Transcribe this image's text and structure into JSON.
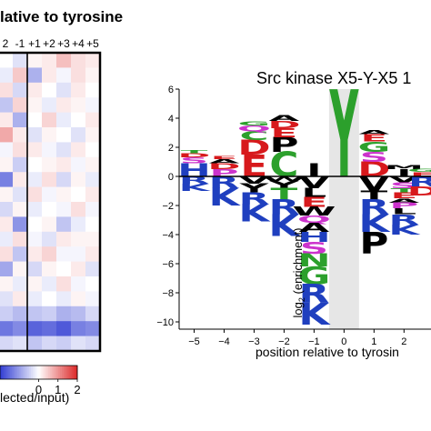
{
  "chart_data": [
    {
      "type": "heatmap",
      "title_fragment": "lative to tyrosine",
      "column_labels": [
        "2",
        "-1",
        "+1",
        "+2",
        "+3",
        "+4",
        "+5"
      ],
      "colorbar_ticks": [
        "0",
        "1",
        "2"
      ],
      "colorbar_label_fragment": "lected/input)",
      "colorbar_range": [
        -2,
        2
      ],
      "values": [
        [
          0.0,
          -0.3,
          0.1,
          0.2,
          0.6,
          0.3,
          0.2
        ],
        [
          -0.2,
          0.5,
          -0.8,
          0.2,
          -0.1,
          0.3,
          0.1
        ],
        [
          0.3,
          -0.4,
          0.2,
          0.0,
          -0.3,
          0.2,
          0.0
        ],
        [
          -0.6,
          0.4,
          0.1,
          -0.2,
          0.2,
          0.1,
          -0.1
        ],
        [
          0.2,
          -0.8,
          0.0,
          0.4,
          -0.2,
          0.0,
          0.2
        ],
        [
          0.8,
          0.2,
          -0.3,
          0.1,
          0.0,
          -0.3,
          0.1
        ],
        [
          -0.1,
          0.3,
          0.2,
          -0.1,
          -0.3,
          0.2,
          0.0
        ],
        [
          0.1,
          -0.5,
          0.0,
          0.1,
          0.2,
          -0.1,
          0.1
        ],
        [
          -1.3,
          0.2,
          -0.2,
          0.3,
          -0.4,
          0.1,
          -0.2
        ],
        [
          0.1,
          -0.3,
          0.3,
          -0.1,
          0.1,
          0.0,
          0.2
        ],
        [
          -0.4,
          0.1,
          -0.2,
          0.0,
          -0.1,
          0.3,
          -0.1
        ],
        [
          0.2,
          -1.1,
          0.0,
          0.1,
          -0.6,
          -0.2,
          0.0
        ],
        [
          -0.2,
          0.3,
          -0.1,
          -0.3,
          0.2,
          0.1,
          0.1
        ],
        [
          0.3,
          -0.6,
          0.2,
          0.4,
          -0.1,
          -0.1,
          0.2
        ],
        [
          -0.9,
          0.1,
          -0.4,
          0.1,
          0.0,
          0.2,
          -0.3
        ],
        [
          0.1,
          -0.2,
          0.1,
          -0.2,
          0.3,
          -0.1,
          0.0
        ],
        [
          -0.3,
          0.2,
          -0.2,
          0.0,
          -0.2,
          0.1,
          -0.1
        ],
        [
          -0.5,
          -0.7,
          -0.6,
          -0.5,
          -0.8,
          -0.7,
          -0.4
        ],
        [
          -1.4,
          -1.2,
          -1.6,
          -1.5,
          -1.7,
          -1.3,
          -1.2
        ],
        [
          -0.4,
          -0.3,
          -0.6,
          -0.4,
          -0.5,
          -0.3,
          -0.4
        ]
      ]
    },
    {
      "type": "bar",
      "subtype": "sequence-logo",
      "title": "Src kinase X5-Y-X5 1",
      "xlabel": "position relative to tyrosin",
      "ylabel": "log",
      "ylabel_sub": "2",
      "ylabel_rest": " (enrichment)",
      "xlim": [
        -5.5,
        2.9
      ],
      "ylim": [
        -10.5,
        6
      ],
      "yticks": [
        6,
        4,
        2,
        0,
        -2,
        -4,
        -6,
        -8,
        -10
      ],
      "xticks": [
        -5,
        -4,
        -3,
        -2,
        -1,
        0,
        1,
        2
      ],
      "xtick_labels": [
        "−5",
        "−4",
        "−3",
        "−2",
        "−1",
        "0",
        "1",
        "2"
      ],
      "ytick_labels": [
        "6",
        "4",
        "2",
        "0",
        "−2",
        "−4",
        "−6",
        "−8",
        "−10"
      ],
      "highlight_position": 0,
      "highlight_color": "#e6e6e6",
      "colors": {
        "acidic": "#d7191c",
        "basic": "#1f3fbf",
        "hydrophobic": "#000000",
        "polar": "#2ca02c",
        "special": "#cc33cc",
        "other": "#e07020"
      },
      "positions": [
        {
          "x": -5,
          "up": [
            [
              "H",
              0.9,
              "basic"
            ],
            [
              "S",
              0.4,
              "special"
            ],
            [
              "D",
              0.3,
              "acidic"
            ],
            [
              "T",
              0.2,
              "polar"
            ]
          ],
          "down": [
            [
              "R",
              0.5,
              "basic"
            ],
            [
              "K",
              0.5,
              "basic"
            ]
          ]
        },
        {
          "x": -4,
          "up": [
            [
              "P",
              0.5,
              "special"
            ],
            [
              "D",
              0.4,
              "acidic"
            ],
            [
              "A",
              0.3,
              "hydrophobic"
            ],
            [
              "E",
              0.2,
              "acidic"
            ]
          ],
          "down": [
            [
              "R",
              0.8,
              "basic"
            ],
            [
              "K",
              1.2,
              "basic"
            ]
          ]
        },
        {
          "x": -3,
          "up": [
            [
              "E",
              1.5,
              "acidic"
            ],
            [
              "D",
              1.0,
              "acidic"
            ],
            [
              "C",
              0.6,
              "polar"
            ],
            [
              "Q",
              0.4,
              "special"
            ],
            [
              "G",
              0.3,
              "polar"
            ]
          ],
          "down": [
            [
              "V",
              0.5,
              "hydrophobic"
            ],
            [
              "Y",
              0.6,
              "hydrophobic"
            ],
            [
              "R",
              0.8,
              "basic"
            ],
            [
              "K",
              1.2,
              "basic"
            ]
          ]
        },
        {
          "x": -2,
          "up": [
            [
              "C",
              1.7,
              "polar"
            ],
            [
              "P",
              1.0,
              "hydrophobic"
            ],
            [
              "E",
              0.6,
              "acidic"
            ],
            [
              "D",
              0.5,
              "acidic"
            ],
            [
              "A",
              0.4,
              "hydrophobic"
            ]
          ],
          "down": [
            [
              "W",
              0.3,
              "hydrophobic"
            ],
            [
              "Y",
              0.5,
              "hydrophobic"
            ],
            [
              "T",
              0.8,
              "polar"
            ],
            [
              "R",
              1.0,
              "basic"
            ],
            [
              "K",
              1.5,
              "basic"
            ]
          ]
        },
        {
          "x": -1,
          "up": [
            [
              "I",
              0.9,
              "hydrophobic"
            ]
          ],
          "down": [
            [
              "V",
              0.8,
              "hydrophobic"
            ],
            [
              "L",
              0.6,
              "hydrophobic"
            ],
            [
              "E",
              0.7,
              "acidic"
            ],
            [
              "W",
              0.6,
              "hydrophobic"
            ],
            [
              "Q",
              0.5,
              "special"
            ],
            [
              "A",
              0.6,
              "hydrophobic"
            ],
            [
              "H",
              0.7,
              "basic"
            ],
            [
              "S",
              0.8,
              "special"
            ],
            [
              "N",
              0.9,
              "polar"
            ],
            [
              "G",
              1.2,
              "polar"
            ],
            [
              "R",
              1.3,
              "basic"
            ],
            [
              "K",
              1.5,
              "basic"
            ]
          ]
        },
        {
          "x": 0,
          "up": [
            [
              "Y",
              6.0,
              "polar"
            ]
          ],
          "down": []
        },
        {
          "x": 1,
          "up": [
            [
              "D",
              1.0,
              "acidic"
            ],
            [
              "S",
              0.7,
              "special"
            ],
            [
              "G",
              0.7,
              "polar"
            ],
            [
              "E",
              0.5,
              "acidic"
            ],
            [
              "A",
              0.3,
              "hydrophobic"
            ]
          ],
          "down": [
            [
              "V",
              1.0,
              "hydrophobic"
            ],
            [
              "T",
              0.6,
              "hydrophobic"
            ],
            [
              "R",
              1.0,
              "basic"
            ],
            [
              "K",
              1.2,
              "basic"
            ],
            [
              "P",
              1.5,
              "hydrophobic"
            ]
          ]
        },
        {
          "x": 2,
          "up": [
            [
              "I",
              0.5,
              "hydrophobic"
            ],
            [
              "M",
              0.3,
              "hydrophobic"
            ]
          ],
          "down": [
            [
              "V",
              0.4,
              "hydrophobic"
            ],
            [
              "S",
              0.4,
              "special"
            ],
            [
              "T",
              0.3,
              "polar"
            ],
            [
              "E",
              0.4,
              "acidic"
            ],
            [
              "A",
              0.3,
              "hydrophobic"
            ],
            [
              "P",
              0.4,
              "special"
            ],
            [
              "L",
              0.4,
              "hydrophobic"
            ],
            [
              "R",
              0.7,
              "basic"
            ],
            [
              "K",
              0.7,
              "basic"
            ]
          ]
        },
        {
          "x": 2.65,
          "up": [
            [
              "E",
              0.3,
              "acidic"
            ],
            [
              "G",
              0.2,
              "polar"
            ]
          ],
          "down": [
            [
              "R",
              0.7,
              "basic"
            ],
            [
              "D",
              0.6,
              "acidic"
            ]
          ]
        }
      ]
    }
  ]
}
